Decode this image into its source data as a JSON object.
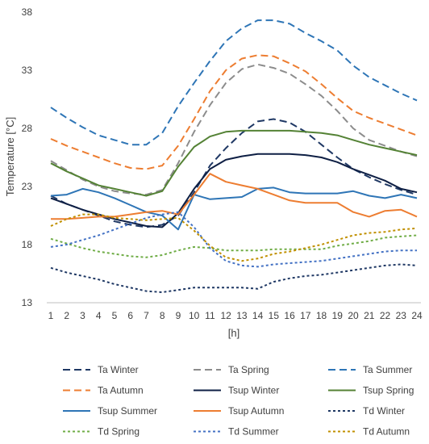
{
  "chart_data": {
    "type": "line",
    "xlabel": "[h]",
    "ylabel": "Temperature [°C]",
    "ylim": [
      13,
      38
    ],
    "yticks": [
      13,
      18,
      23,
      28,
      33,
      38
    ],
    "x": [
      1,
      2,
      3,
      4,
      5,
      6,
      7,
      8,
      9,
      10,
      11,
      12,
      13,
      14,
      15,
      16,
      17,
      18,
      19,
      20,
      21,
      22,
      23,
      24
    ],
    "grid": false,
    "legend_position": "bottom",
    "series": [
      {
        "name": "Ta Winter",
        "color": "#1f3864",
        "dash": "long",
        "values": [
          22.2,
          21.5,
          21.0,
          20.5,
          20.0,
          19.7,
          19.5,
          19.7,
          20.5,
          22.5,
          24.8,
          26.3,
          27.6,
          28.6,
          28.8,
          28.5,
          27.7,
          26.6,
          25.5,
          24.5,
          23.8,
          23.2,
          22.7,
          22.3
        ]
      },
      {
        "name": "Ta Spring",
        "color": "#8c8c8c",
        "dash": "long",
        "values": [
          25.2,
          24.4,
          23.6,
          23.0,
          22.6,
          22.4,
          22.3,
          22.7,
          25.0,
          27.7,
          30.0,
          31.9,
          33.1,
          33.5,
          33.2,
          32.7,
          31.8,
          30.8,
          29.5,
          28.0,
          27.0,
          26.5,
          26.0,
          25.6
        ]
      },
      {
        "name": "Ta Summer",
        "color": "#2e75b6",
        "dash": "long",
        "values": [
          29.8,
          28.9,
          28.1,
          27.4,
          27.0,
          26.6,
          26.6,
          27.6,
          29.9,
          31.9,
          33.8,
          35.5,
          36.6,
          37.3,
          37.3,
          37.0,
          36.2,
          35.5,
          34.7,
          33.4,
          32.4,
          31.7,
          31.0,
          30.4
        ]
      },
      {
        "name": "Ta Autumn",
        "color": "#ed7d31",
        "dash": "long",
        "values": [
          27.1,
          26.5,
          26.0,
          25.5,
          25.0,
          24.6,
          24.5,
          24.8,
          26.5,
          28.8,
          31.2,
          33.0,
          34.0,
          34.3,
          34.2,
          33.6,
          32.9,
          31.8,
          30.6,
          29.5,
          28.9,
          28.4,
          27.9,
          27.4
        ]
      },
      {
        "name": "Tsup Winter",
        "color": "#0e1f44",
        "dash": "solid",
        "values": [
          22.0,
          21.5,
          21.0,
          20.6,
          20.2,
          19.9,
          19.6,
          19.5,
          20.7,
          22.8,
          24.5,
          25.3,
          25.6,
          25.8,
          25.8,
          25.8,
          25.7,
          25.5,
          25.1,
          24.5,
          24.0,
          23.5,
          22.8,
          22.5
        ]
      },
      {
        "name": "Tsup Spring",
        "color": "#548235",
        "dash": "solid",
        "values": [
          25.0,
          24.3,
          23.7,
          23.1,
          22.8,
          22.5,
          22.2,
          22.6,
          24.7,
          26.4,
          27.3,
          27.7,
          27.8,
          27.8,
          27.8,
          27.8,
          27.7,
          27.6,
          27.4,
          27.0,
          26.6,
          26.3,
          26.0,
          25.7
        ]
      },
      {
        "name": "Tsup Summer",
        "color": "#2e75b6",
        "dash": "solid",
        "values": [
          22.2,
          22.3,
          22.8,
          22.5,
          22.0,
          21.4,
          20.8,
          20.5,
          19.3,
          22.3,
          21.9,
          22.0,
          22.1,
          22.8,
          22.9,
          22.5,
          22.4,
          22.4,
          22.4,
          22.6,
          22.2,
          22.0,
          22.3,
          22.0
        ]
      },
      {
        "name": "Tsup Autumn",
        "color": "#ed7d31",
        "dash": "solid",
        "values": [
          20.2,
          20.2,
          20.3,
          20.4,
          20.4,
          20.6,
          20.8,
          20.9,
          20.6,
          22.3,
          24.1,
          23.4,
          23.1,
          22.8,
          22.3,
          21.8,
          21.6,
          21.6,
          21.6,
          20.8,
          20.4,
          20.9,
          21.0,
          20.4
        ]
      },
      {
        "name": "Td Winter",
        "color": "#1f3864",
        "dash": "dot",
        "values": [
          16.0,
          15.6,
          15.3,
          15.0,
          14.6,
          14.3,
          14.0,
          13.9,
          14.1,
          14.3,
          14.3,
          14.3,
          14.3,
          14.2,
          14.8,
          15.1,
          15.3,
          15.4,
          15.6,
          15.8,
          16.0,
          16.2,
          16.3,
          16.2
        ]
      },
      {
        "name": "Td Spring",
        "color": "#70ad47",
        "dash": "dot",
        "values": [
          18.5,
          18.1,
          17.7,
          17.4,
          17.2,
          17.0,
          16.9,
          17.1,
          17.5,
          17.8,
          17.7,
          17.5,
          17.5,
          17.5,
          17.6,
          17.6,
          17.6,
          17.6,
          17.9,
          18.1,
          18.3,
          18.6,
          18.7,
          18.8
        ]
      },
      {
        "name": "Td Summer",
        "color": "#4472c4",
        "dash": "dot",
        "values": [
          17.8,
          18.0,
          18.4,
          18.8,
          19.3,
          19.8,
          20.3,
          20.6,
          20.8,
          19.5,
          17.7,
          16.6,
          16.2,
          16.1,
          16.3,
          16.4,
          16.5,
          16.6,
          16.8,
          17.0,
          17.2,
          17.4,
          17.5,
          17.5
        ]
      },
      {
        "name": "Td Autumn",
        "color": "#c09000",
        "dash": "dot",
        "values": [
          19.6,
          20.2,
          20.6,
          20.6,
          20.3,
          20.2,
          20.1,
          20.2,
          20.3,
          19.2,
          17.9,
          16.9,
          16.6,
          16.8,
          17.2,
          17.4,
          17.7,
          18.0,
          18.4,
          18.8,
          19.0,
          19.1,
          19.3,
          19.4
        ]
      }
    ]
  }
}
